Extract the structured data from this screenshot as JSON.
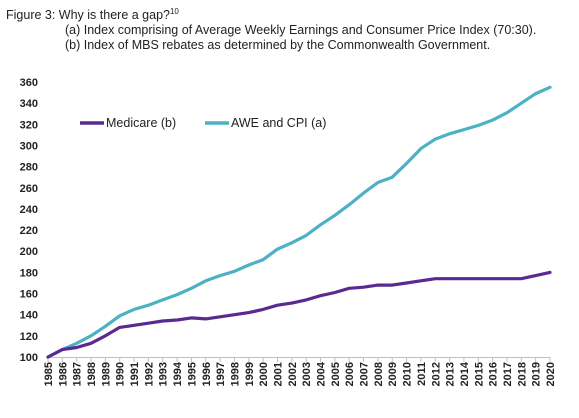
{
  "figure": {
    "title": "Figure 3: Why is there a gap?",
    "footnote_ref": "10",
    "subtitle_a": "(a) Index comprising of Average Weekly Earnings and Consumer Price Index (70:30).",
    "subtitle_b": "(b) Index of MBS rebates as determined by the Commonwealth Government."
  },
  "chart_data": {
    "type": "line",
    "title": "Figure 3: Why is there a gap?",
    "xlabel": "",
    "ylabel": "",
    "x": [
      "1985",
      "1986",
      "1987",
      "1988",
      "1989",
      "1990",
      "1991",
      "1992",
      "1993",
      "1994",
      "1995",
      "1996",
      "1997",
      "1998",
      "1999",
      "2000",
      "2001",
      "2002",
      "2003",
      "2004",
      "2005",
      "2006",
      "2007",
      "2008",
      "2009",
      "2010",
      "2011",
      "2012",
      "2013",
      "2014",
      "2015",
      "2016",
      "2017",
      "2018",
      "2019",
      "2020"
    ],
    "ylim": [
      100,
      360
    ],
    "yticks": [
      100,
      120,
      140,
      160,
      180,
      200,
      220,
      240,
      260,
      280,
      300,
      320,
      340,
      360
    ],
    "grid": false,
    "legend_position": "top-left",
    "series": [
      {
        "name": "Medicare (b)",
        "color": "#5b2a91",
        "values": [
          100,
          107,
          109,
          113,
          120,
          128,
          130,
          132,
          134,
          135,
          137,
          136,
          138,
          140,
          142,
          145,
          149,
          151,
          154,
          158,
          161,
          165,
          166,
          168,
          168,
          170,
          172,
          174,
          174,
          174,
          174,
          174,
          174,
          174,
          177,
          180
        ]
      },
      {
        "name": "AWE and CPI (a)",
        "color": "#4db1c4",
        "values": [
          100,
          107,
          113,
          120,
          129,
          139,
          145,
          149,
          154,
          159,
          165,
          172,
          177,
          181,
          187,
          192,
          202,
          208,
          215,
          225,
          234,
          244,
          255,
          265,
          270,
          283,
          297,
          306,
          311,
          315,
          319,
          324,
          331,
          340,
          349,
          355
        ]
      }
    ]
  }
}
